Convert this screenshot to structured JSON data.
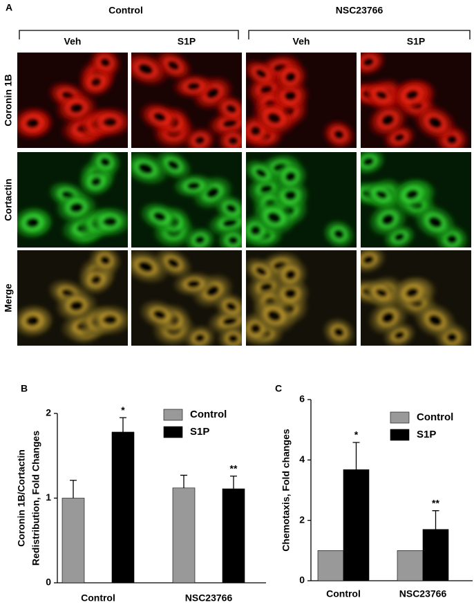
{
  "panel_a": {
    "label": "A",
    "groups": [
      "Control",
      "NSC23766"
    ],
    "columns": [
      "Veh",
      "S1P",
      "Veh",
      "S1P"
    ],
    "rows": [
      "Coronin 1B",
      "Cortactin",
      "Merge"
    ]
  },
  "chart_data": [
    {
      "type": "bar",
      "label": "B",
      "ylabel": [
        "Coronin 1B/Cortactin",
        "Redistribution, Fold Changes"
      ],
      "categories": [
        "Control",
        "NSC23766"
      ],
      "series": [
        {
          "name": "Control",
          "color": "#999999",
          "values": [
            1.0,
            1.12
          ],
          "errors": [
            0.21,
            0.15
          ]
        },
        {
          "name": "S1P",
          "color": "#000000",
          "values": [
            1.78,
            1.11
          ],
          "errors": [
            0.17,
            0.15
          ],
          "annotations": [
            "*",
            "**"
          ]
        }
      ],
      "ylim": [
        0,
        2
      ],
      "yticks": [
        0,
        1,
        2
      ]
    },
    {
      "type": "bar",
      "label": "C",
      "ylabel": [
        "Chemotaxis, Fold changes"
      ],
      "categories": [
        "Control",
        "NSC23766"
      ],
      "series": [
        {
          "name": "Control",
          "color": "#999999",
          "values": [
            1.0,
            1.0
          ],
          "errors": [
            0,
            0
          ]
        },
        {
          "name": "S1P",
          "color": "#000000",
          "values": [
            3.68,
            1.7
          ],
          "errors": [
            0.9,
            0.62
          ],
          "annotations": [
            "*",
            "**"
          ]
        }
      ],
      "ylim": [
        0,
        6
      ],
      "yticks": [
        0,
        2,
        4,
        6
      ]
    }
  ]
}
